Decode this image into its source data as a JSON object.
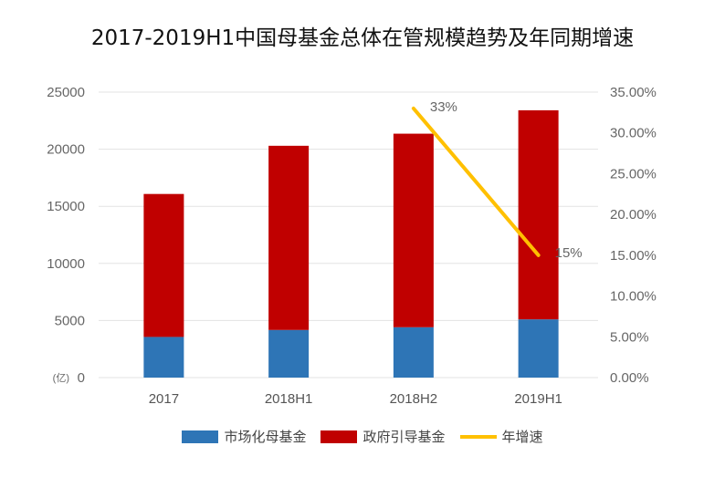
{
  "chart_data": {
    "type": "bar",
    "title": "2017-2019H1中国母基金总体在管规模趋势及年同期增速",
    "categories": [
      "2017",
      "2018H1",
      "2018H2",
      "2019H1"
    ],
    "stacked": true,
    "y_unit_label": "(亿)",
    "ylim": [
      0,
      25000
    ],
    "yticks": [
      "0",
      "5000",
      "10000",
      "15000",
      "20000",
      "25000"
    ],
    "y2lim": [
      0,
      0.35
    ],
    "y2ticks": [
      "0.00%",
      "5.00%",
      "10.00%",
      "15.00%",
      "20.00%",
      "25.00%",
      "30.00%",
      "35.00%"
    ],
    "grid": true,
    "legend_position": "bottom",
    "series": [
      {
        "name": "市场化母基金",
        "type": "bar",
        "color": "#2e75b6",
        "values": [
          3560,
          4170,
          4410,
          5100
        ]
      },
      {
        "name": "政府引导基金",
        "type": "bar",
        "color": "#c00000",
        "values": [
          12520,
          16130,
          16950,
          18310
        ]
      },
      {
        "name": "年增速",
        "type": "line",
        "axis": "right",
        "color": "#ffc000",
        "values": [
          null,
          null,
          0.33,
          0.15
        ],
        "labels": [
          null,
          null,
          "33%",
          "15%"
        ]
      }
    ]
  }
}
